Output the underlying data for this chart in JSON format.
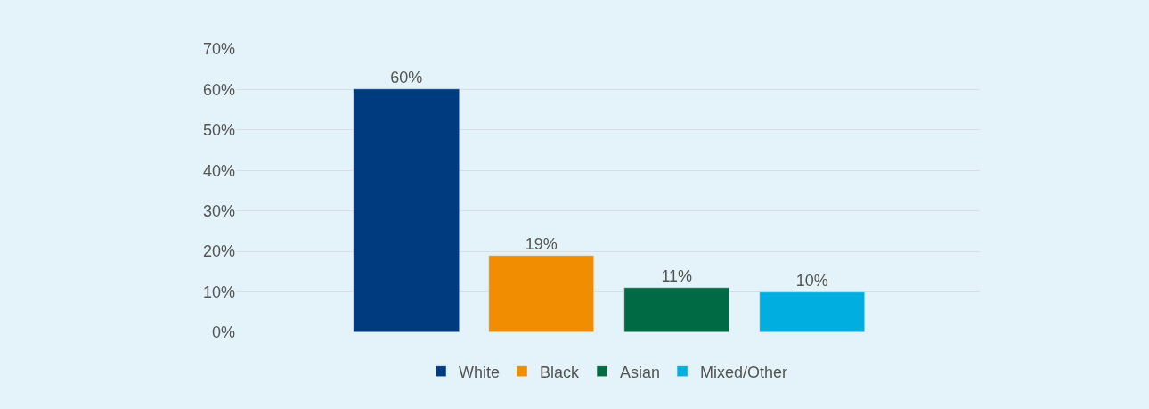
{
  "chart_data": {
    "type": "bar",
    "categories": [
      null,
      null,
      null,
      null
    ],
    "series": [
      {
        "name": "White",
        "color": "#003b80",
        "values": [
          60,
          null,
          null,
          null
        ],
        "value_labels": [
          "60%",
          null,
          null,
          null
        ]
      },
      {
        "name": "Black",
        "color": "#f18d00",
        "values": [
          null,
          19,
          null,
          null
        ],
        "value_labels": [
          null,
          "19%",
          null,
          null
        ]
      },
      {
        "name": "Asian",
        "color": "#006a45",
        "values": [
          null,
          null,
          11,
          null
        ],
        "value_labels": [
          null,
          null,
          "11%",
          null
        ]
      },
      {
        "name": "Mixed/Other",
        "color": "#00aedf",
        "values": [
          null,
          null,
          null,
          10
        ],
        "value_labels": [
          null,
          null,
          null,
          "10%"
        ]
      }
    ],
    "ylim": [
      0,
      70
    ],
    "yticks": [
      {
        "value": 0,
        "label": "0%"
      },
      {
        "value": 10,
        "label": "10%"
      },
      {
        "value": 20,
        "label": "20%"
      },
      {
        "value": 30,
        "label": "30%"
      },
      {
        "value": 40,
        "label": "40%"
      },
      {
        "value": 50,
        "label": "50%"
      },
      {
        "value": 60,
        "label": "60%"
      },
      {
        "value": 70,
        "label": "70%"
      }
    ],
    "grid": "y",
    "legend": "bottom",
    "tick_labels": "y"
  }
}
